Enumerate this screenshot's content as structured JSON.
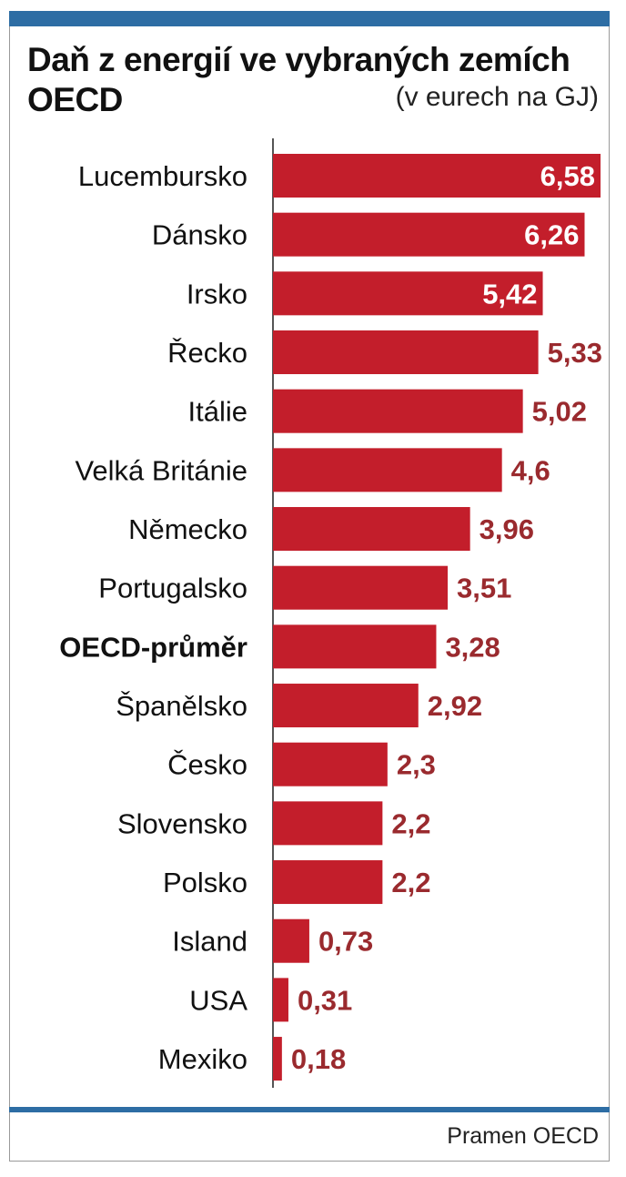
{
  "title": "Daň z energií ve vybraných zemích OECD",
  "unit_note": "(v eurech na GJ)",
  "source": "Pramen OECD",
  "colors": {
    "bar": "#c31e2b",
    "value_label_outside": "#9a2a2e",
    "value_label_inside": "#ffffff",
    "accent_bar": "#2d6da4"
  },
  "chart_data": {
    "type": "bar",
    "orientation": "horizontal",
    "categories": [
      "Lucembursko",
      "Dánsko",
      "Irsko",
      "Řecko",
      "Itálie",
      "Velká Británie",
      "Německo",
      "Portugalsko",
      "OECD-průměr",
      "Španělsko",
      "Česko",
      "Slovensko",
      "Polsko",
      "Island",
      "USA",
      "Mexiko"
    ],
    "values": [
      6.58,
      6.26,
      5.42,
      5.33,
      5.02,
      4.6,
      3.96,
      3.51,
      3.28,
      2.92,
      2.3,
      2.2,
      2.2,
      0.73,
      0.31,
      0.18
    ],
    "value_labels": [
      "6,58",
      "6,26",
      "5,42",
      "5,33",
      "5,02",
      "4,6",
      "3,96",
      "3,51",
      "3,28",
      "2,92",
      "2,3",
      "2,2",
      "2,2",
      "0,73",
      "0,31",
      "0,18"
    ],
    "highlight_category": "OECD-průměr",
    "labels_inside_bars_count": 3,
    "xlim": [
      0,
      6.58
    ],
    "title": "Daň z energií ve vybraných zemích OECD",
    "xlabel": "",
    "ylabel": "",
    "grid": false,
    "legend": "none"
  }
}
